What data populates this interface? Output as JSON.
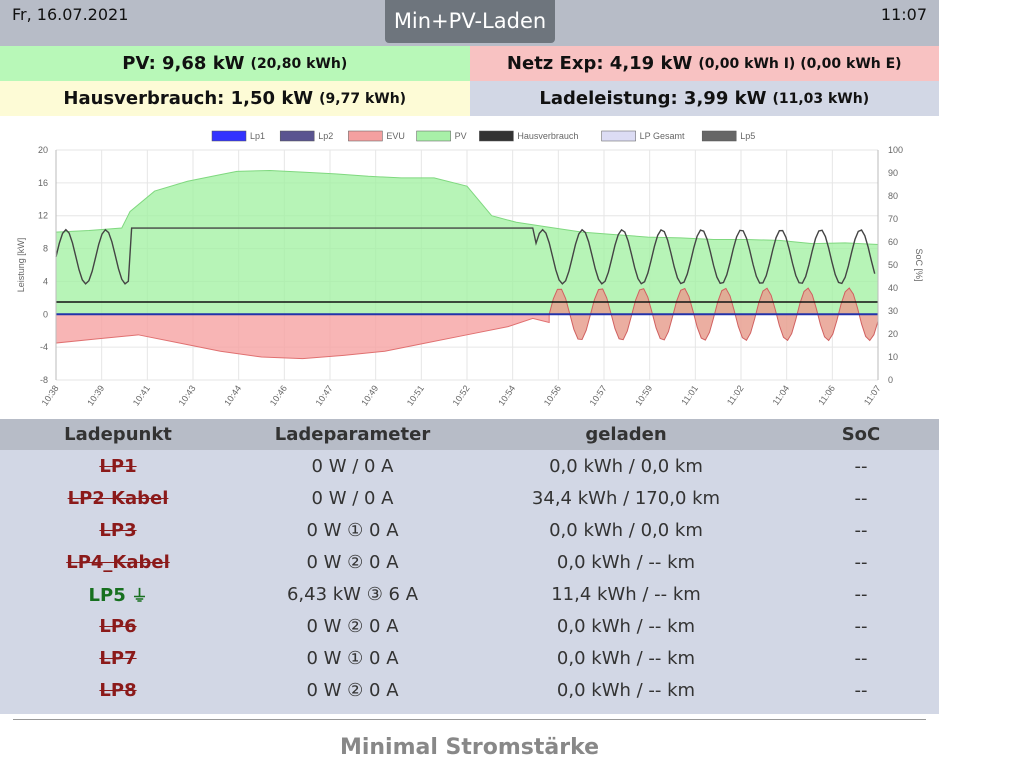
{
  "header": {
    "date": "Fr, 16.07.2021",
    "time": "11:07",
    "mode_button": "Min+PV-Laden"
  },
  "summary": {
    "pv": {
      "label": "PV: 9,68 kW",
      "detail": "(20,80 kWh)"
    },
    "netz": {
      "label": "Netz Exp: 4,19 kW",
      "detail": "(0,00 kWh I) (0,00 kWh E)"
    },
    "haus": {
      "label": "Hausverbrauch: 1,50 kW",
      "detail": "(9,77 kWh)"
    },
    "lade": {
      "label": "Ladeleistung: 3,99 kW",
      "detail": "(11,03 kWh)"
    }
  },
  "chart_data": {
    "type": "area",
    "legend": [
      "Lp1",
      "Lp2",
      "EVU",
      "PV",
      "Hausverbrauch",
      "LP Gesamt",
      "Lp5"
    ],
    "legend_colors": [
      "#3333ff",
      "#5a5490",
      "#f4a0a0",
      "#a8f0a8",
      "#333333",
      "#dcdcf4",
      "#666666"
    ],
    "ylabel": "Leistung [kW]",
    "y2label": "SoC [%]",
    "ylim": [
      -8,
      20
    ],
    "y2lim": [
      0,
      100
    ],
    "yticks": [
      "20",
      "16",
      "12",
      "8",
      "4",
      "0",
      "-4",
      "-8"
    ],
    "y2ticks": [
      "100",
      "90",
      "80",
      "70",
      "60",
      "50",
      "40",
      "30",
      "20",
      "10",
      "0"
    ],
    "xticks": [
      "10:38",
      "10:39",
      "10:41",
      "10:43",
      "10:44",
      "10:46",
      "10:47",
      "10:49",
      "10:51",
      "10:52",
      "10:54",
      "10:56",
      "10:57",
      "10:59",
      "11:01",
      "11:02",
      "11:04",
      "11:06",
      "11:07"
    ],
    "pv_profile": [
      [
        0,
        10
      ],
      [
        4,
        10.2
      ],
      [
        8,
        10.5
      ],
      [
        9,
        12.5
      ],
      [
        12,
        15
      ],
      [
        16,
        16.2
      ],
      [
        20,
        17
      ],
      [
        22,
        17.4
      ],
      [
        26,
        17.5
      ],
      [
        30,
        17.3
      ],
      [
        34,
        17.1
      ],
      [
        38,
        16.8
      ],
      [
        42,
        16.6
      ],
      [
        46,
        16.6
      ],
      [
        50,
        15.6
      ],
      [
        53,
        12
      ],
      [
        56,
        11.2
      ],
      [
        60,
        10.6
      ],
      [
        64,
        10
      ],
      [
        68,
        9.7
      ],
      [
        72,
        9.4
      ],
      [
        76,
        9.3
      ],
      [
        80,
        9.1
      ],
      [
        84,
        9.1
      ],
      [
        88,
        9.0
      ],
      [
        92,
        8.6
      ],
      [
        96,
        8.7
      ],
      [
        100,
        8.5
      ]
    ],
    "evu_min_profile": [
      [
        0,
        -3.5
      ],
      [
        5,
        -3
      ],
      [
        10,
        -2.5
      ],
      [
        15,
        -3.5
      ],
      [
        20,
        -4.5
      ],
      [
        25,
        -5.2
      ],
      [
        30,
        -5.4
      ],
      [
        35,
        -5
      ],
      [
        40,
        -4.5
      ],
      [
        45,
        -3.5
      ],
      [
        50,
        -2.5
      ],
      [
        55,
        -1.5
      ],
      [
        58,
        -0.5
      ],
      [
        60,
        -1
      ]
    ],
    "haus_kw": 1.5,
    "lp_kw": 0
  },
  "table": {
    "headers": [
      "Ladepunkt",
      "Ladeparameter",
      "geladen",
      "SoC"
    ],
    "rows": [
      {
        "name": "LP1",
        "param": "0 W / 0 A",
        "charged": "0,0 kWh / 0,0 km",
        "soc": "--",
        "active": false
      },
      {
        "name": "LP2 Kabel",
        "param": "0 W / 0 A",
        "charged": "34,4 kWh / 170,0 km",
        "soc": "--",
        "active": false
      },
      {
        "name": "LP3",
        "param": "0 W ① 0 A",
        "charged": "0,0 kWh / 0,0 km",
        "soc": "--",
        "active": false
      },
      {
        "name": "LP4_Kabel",
        "param": "0 W ② 0 A",
        "charged": "0,0 kWh / -- km",
        "soc": "--",
        "active": false
      },
      {
        "name": "LP5",
        "param": "6,43 kW ③ 6 A",
        "charged": "11,4 kWh / -- km",
        "soc": "--",
        "active": true,
        "icon": "plug-icon"
      },
      {
        "name": "LP6",
        "param": "0 W ② 0 A",
        "charged": "0,0 kWh / -- km",
        "soc": "--",
        "active": false
      },
      {
        "name": "LP7",
        "param": "0 W ① 0 A",
        "charged": "0,0 kWh / -- km",
        "soc": "--",
        "active": false
      },
      {
        "name": "LP8",
        "param": "0 W ② 0 A",
        "charged": "0,0 kWh / -- km",
        "soc": "--",
        "active": false
      }
    ]
  },
  "footer": {
    "title": "Minimal Stromstärke"
  }
}
